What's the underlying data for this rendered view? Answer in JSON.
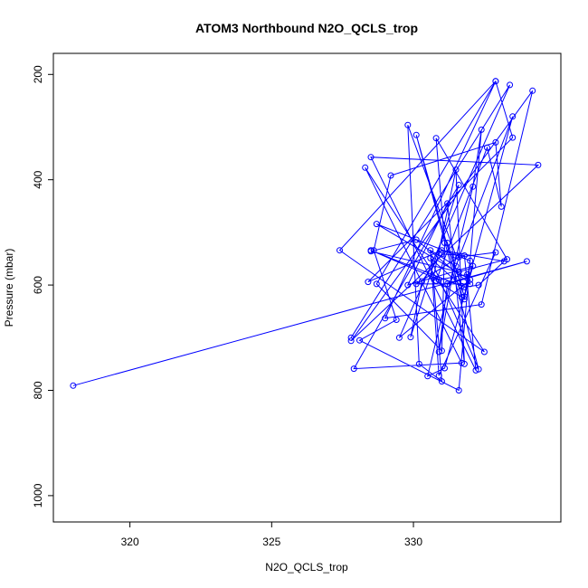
{
  "chart_data": {
    "type": "line",
    "title": "ATOM3 Northbound N2O_QCLS_trop",
    "xlabel": "N2O_QCLS_trop",
    "ylabel": "Pressure (mbar)",
    "xlim": [
      317.3,
      335.2
    ],
    "ylim": [
      1050,
      160
    ],
    "y_reversed": true,
    "x_ticks": [
      320,
      325,
      330
    ],
    "y_ticks": [
      200,
      400,
      600,
      800,
      1000
    ],
    "grid": false,
    "legend": "none",
    "series_color": "#0000ff",
    "series": [
      {
        "x": [
          318.0,
          334.0,
          331.2,
          330.9,
          331.5,
          329.8,
          330.2,
          331.0,
          330.7,
          331.5,
          331.8,
          331.2,
          329.8,
          332.1,
          331.8,
          331.2,
          331.7,
          330.6,
          332.3,
          330.1,
          331.7,
          330.8,
          332.6,
          333.1,
          332.9,
          329.2,
          328.6,
          329.4,
          328.1,
          331.6,
          332.4,
          332.1,
          330.5,
          331.1,
          333.5,
          331.5,
          330.6,
          330.9,
          332.9,
          331.6,
          330.1,
          332.0,
          330.1,
          328.5,
          331.6,
          333.3,
          330.8,
          331.1,
          331.0,
          328.7,
          332.9,
          329.0,
          332.4,
          334.2,
          327.8,
          334.4,
          328.5,
          332.2,
          331.8,
          331.0,
          330.3,
          329.9,
          331.6,
          327.9,
          331.7,
          328.3,
          332.5,
          327.4,
          332.9,
          333.5,
          328.4,
          331.0,
          333.2,
          332.3,
          331.8,
          328.5,
          330.9,
          331.9,
          331.8,
          332.0,
          328.7,
          332.0,
          329.5,
          333.4,
          327.8
        ],
        "y": [
          791,
          555,
          598,
          727,
          544,
          296,
          750,
          783,
          586,
          381,
          750,
          445,
          600,
          564,
          622,
          520,
          602,
          549,
          760,
          315,
          623,
          592,
          339,
          451,
          329,
          392,
          534,
          666,
          705,
          800,
          305,
          413,
          773,
          758,
          280,
          564,
          534,
          772,
          538,
          547,
          598,
          598,
          514,
          536,
          575,
          551,
          321,
          520,
          725,
          598,
          213,
          663,
          637,
          231,
          706,
          372,
          357,
          762,
          544,
          541,
          593,
          699,
          410,
          759,
          748,
          377,
          727,
          534,
          213,
          320,
          594,
          534,
          555,
          600,
          604,
          534,
          590,
          580,
          627,
          554,
          484,
          590,
          700,
          220,
          700
        ]
      }
    ]
  }
}
